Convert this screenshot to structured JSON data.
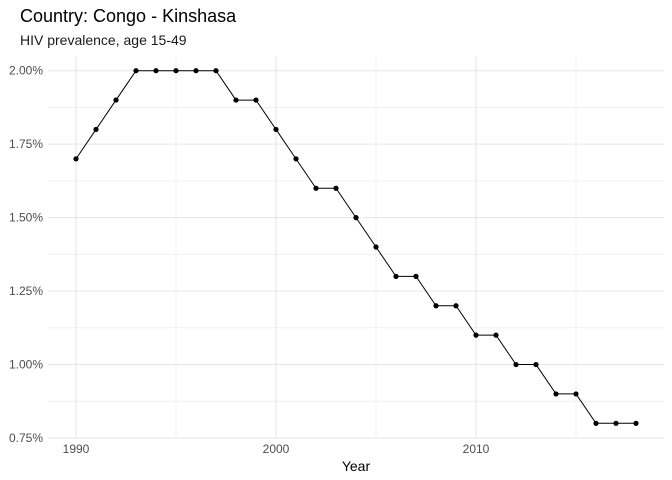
{
  "title": "Country: Congo - Kinshasa",
  "subtitle": "HIV prevalence, age 15-49",
  "chart_data": {
    "type": "line",
    "title": "Country: Congo - Kinshasa",
    "subtitle": "HIV prevalence, age 15-49",
    "xlabel": "Year",
    "ylabel": "",
    "xlim": [
      1988.6,
      2019.4
    ],
    "ylim": [
      0.75,
      2.05
    ],
    "x_ticks": [
      1990,
      2000,
      2010
    ],
    "x_tick_labels": [
      "1990",
      "2000",
      "2010"
    ],
    "y_ticks": [
      0.75,
      1.0,
      1.25,
      1.5,
      1.75,
      2.0
    ],
    "y_tick_labels": [
      "0.75%",
      "1.00%",
      "1.25%",
      "1.50%",
      "1.75%",
      "2.00%"
    ],
    "grid": true,
    "legend": "none",
    "series": [
      {
        "color": "#000000",
        "x": [
          1990,
          1991,
          1992,
          1993,
          1994,
          1995,
          1996,
          1997,
          1998,
          1999,
          2000,
          2001,
          2002,
          2003,
          2004,
          2005,
          2006,
          2007,
          2008,
          2009,
          2010,
          2011,
          2012,
          2013,
          2014,
          2015,
          2016,
          2017,
          2018
        ],
        "y": [
          1.7,
          1.8,
          1.9,
          2.0,
          2.0,
          2.0,
          2.0,
          2.0,
          1.9,
          1.9,
          1.8,
          1.7,
          1.6,
          1.6,
          1.5,
          1.4,
          1.3,
          1.3,
          1.2,
          1.2,
          1.1,
          1.1,
          1.0,
          1.0,
          0.9,
          0.9,
          0.8,
          0.8,
          0.8
        ]
      }
    ]
  }
}
